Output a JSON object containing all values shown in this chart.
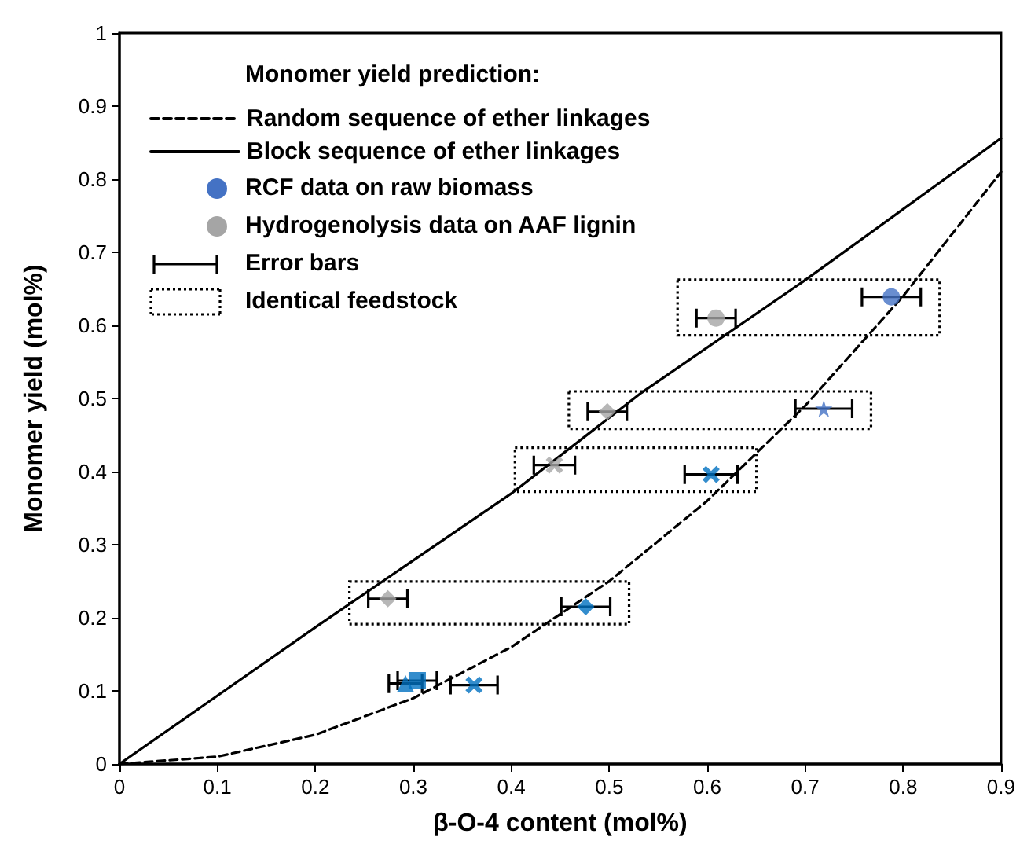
{
  "chart_data": {
    "type": "scatter",
    "xlabel": "β-O-4 content (mol%)",
    "ylabel": "Monomer yield (mol%)",
    "legend_title": "Monomer yield prediction:",
    "legend": "top left",
    "grid": false,
    "annotations": [
      "Error bars",
      "Identical feedstock"
    ],
    "xlim": [
      0,
      0.9
    ],
    "xticks": [
      0,
      0.1,
      0.2,
      0.3,
      0.4,
      0.5,
      0.6,
      0.7,
      0.8,
      0.9
    ],
    "ylim": [
      0,
      1
    ],
    "yticks": [
      0,
      0.1,
      0.2,
      0.3,
      0.4,
      0.5,
      0.6,
      0.7,
      0.8,
      0.9,
      1
    ],
    "series": [
      {
        "name": "Random sequence of ether linkages",
        "type": "line",
        "line_style": "dashed",
        "marker": "none",
        "color": "#000000",
        "x": [
          0,
          0.1,
          0.2,
          0.3,
          0.4,
          0.5,
          0.6,
          0.7,
          0.8,
          0.9
        ],
        "values": [
          0,
          0.01,
          0.04,
          0.09,
          0.16,
          0.25,
          0.36,
          0.49,
          0.64,
          0.81
        ]
      },
      {
        "name": "Block sequence of ether linkages",
        "type": "line",
        "line_style": "solid",
        "marker": "none",
        "color": "#000000",
        "x": [
          0,
          0.2,
          0.4,
          0.533,
          0.7,
          0.9
        ],
        "values": [
          0,
          0.187,
          0.37,
          0.508,
          0.662,
          0.856
        ]
      },
      {
        "name": "RCF data on raw biomass",
        "marker": "circle",
        "color": "#4472c4",
        "x": [
          0.788
        ],
        "values": [
          0.639
        ],
        "xerrors": [
          0.03
        ]
      },
      {
        "marker": "star",
        "color": "#4472c4",
        "x": [
          0.719
        ],
        "values": [
          0.486
        ],
        "xerrors": [
          0.029
        ]
      },
      {
        "marker": "cross",
        "color": "#0070c0",
        "x": [
          0.604
        ],
        "values": [
          0.396
        ],
        "xerrors": [
          0.027
        ]
      },
      {
        "marker": "diamond",
        "color": "#0070c0",
        "x": [
          0.476
        ],
        "values": [
          0.215
        ],
        "xerrors": [
          0.025
        ]
      },
      {
        "marker": "triangle",
        "color": "#0070c0",
        "x": [
          0.292
        ],
        "values": [
          0.11
        ],
        "xerrors": [
          0.017
        ]
      },
      {
        "marker": "square",
        "color": "#0070c0",
        "x": [
          0.304
        ],
        "values": [
          0.114
        ],
        "xerrors": [
          0.02
        ]
      },
      {
        "marker": "cross",
        "color": "#0070c0",
        "x": [
          0.362
        ],
        "values": [
          0.108
        ],
        "xerrors": [
          0.024
        ]
      },
      {
        "name": "Hydrogenolysis data on AAF lignin",
        "marker": "circle",
        "color": "#a5a5a5",
        "x": [
          0.609
        ],
        "values": [
          0.61
        ],
        "xerrors": [
          0.02
        ]
      },
      {
        "marker": "diamond",
        "color": "#a5a5a5",
        "x": [
          0.498
        ],
        "values": [
          0.482
        ],
        "xerrors": [
          0.02
        ]
      },
      {
        "marker": "cross",
        "color": "#a5a5a5",
        "x": [
          0.444
        ],
        "values": [
          0.409
        ],
        "xerrors": [
          0.021
        ]
      },
      {
        "marker": "diamond",
        "color": "#a5a5a5",
        "x": [
          0.274
        ],
        "values": [
          0.226
        ],
        "xerrors": [
          0.02
        ]
      }
    ]
  }
}
